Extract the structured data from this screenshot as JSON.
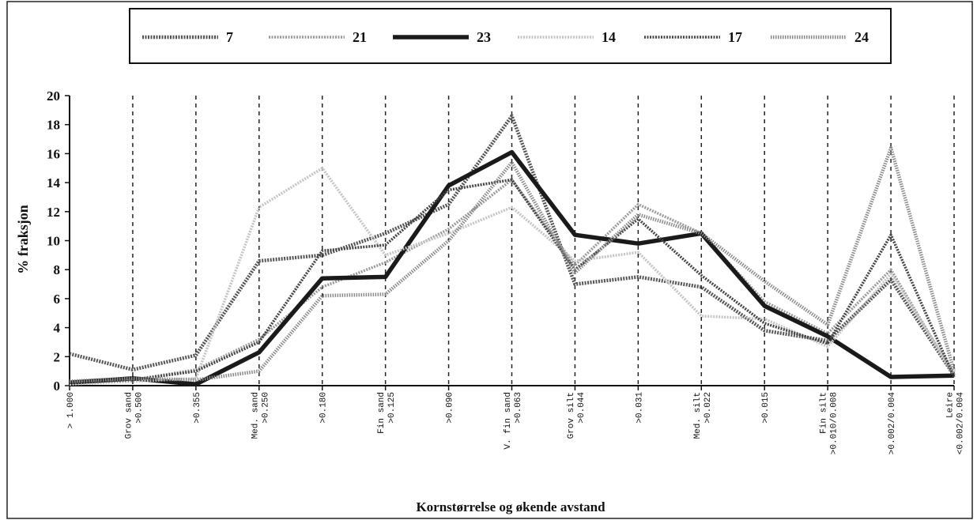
{
  "chart_data": {
    "type": "line",
    "title": "",
    "xlabel": "Kornstørrelse og økende avstand",
    "ylabel": "% fraksjon",
    "ylim": [
      0,
      20
    ],
    "yticks": [
      0,
      2,
      4,
      6,
      8,
      10,
      12,
      14,
      16,
      18,
      20
    ],
    "grid": "vertical-dashed",
    "legend_position": "top-center",
    "categories": [
      [
        "> 1.000"
      ],
      [
        "Grov sand",
        ">0.500"
      ],
      [
        ">0.355"
      ],
      [
        "Med. sand",
        ">0.250"
      ],
      [
        ">0.180"
      ],
      [
        "Fin sand",
        ">0.125"
      ],
      [
        ">0.090"
      ],
      [
        "V. fin sand",
        ">0.063"
      ],
      [
        "Grov silt",
        ">0.044"
      ],
      [
        ">0.031"
      ],
      [
        "Med. silt",
        ">0.022"
      ],
      [
        ">0.015"
      ],
      [
        "Fin silt",
        ">0.010/0.008"
      ],
      [
        ">0.002/0.004"
      ],
      [
        "Leire",
        "<0.002/0.004"
      ]
    ],
    "series": [
      {
        "name": "7",
        "color": "#555555",
        "width": 4.5,
        "dash": "2 1.5",
        "values": [
          2.2,
          1.1,
          2.1,
          8.6,
          9.0,
          10.5,
          12.5,
          18.6,
          7.0,
          7.5,
          6.8,
          3.8,
          3.1,
          7.3,
          0.7
        ]
      },
      {
        "name": "21",
        "color": "#9a9a9a",
        "width": 3.5,
        "dash": "2 1.5",
        "values": [
          0.2,
          0.4,
          1.1,
          3.2,
          6.8,
          8.5,
          10.8,
          14.2,
          8.3,
          12.5,
          10.5,
          5.8,
          3.6,
          8.0,
          0.7
        ]
      },
      {
        "name": "23",
        "color": "#1a1a1a",
        "width": 5.5,
        "dash": "",
        "values": [
          0.2,
          0.5,
          0.1,
          2.3,
          7.4,
          7.5,
          13.8,
          16.1,
          10.4,
          9.8,
          10.5,
          5.5,
          3.4,
          0.6,
          0.7
        ]
      },
      {
        "name": "14",
        "color": "#c4c4c4",
        "width": 3.5,
        "dash": "2 1.5",
        "values": [
          0.1,
          0.3,
          0.5,
          12.3,
          15.0,
          9.0,
          10.5,
          12.3,
          8.6,
          9.2,
          4.8,
          4.6,
          2.7,
          7.7,
          0.9
        ]
      },
      {
        "name": "17",
        "color": "#444444",
        "width": 3.5,
        "dash": "2 1.5",
        "values": [
          0.2,
          0.4,
          1.0,
          3.0,
          9.3,
          9.7,
          13.5,
          14.2,
          8.0,
          11.5,
          7.6,
          4.3,
          2.9,
          10.4,
          0.6
        ]
      },
      {
        "name": "24",
        "color": "#8a8a8a",
        "width": 4.5,
        "dash": "1.5 1.5",
        "values": [
          0.3,
          0.5,
          0.4,
          1.0,
          6.2,
          6.3,
          10.0,
          15.4,
          7.8,
          11.8,
          10.5,
          7.2,
          4.2,
          16.4,
          1.0
        ]
      }
    ]
  }
}
